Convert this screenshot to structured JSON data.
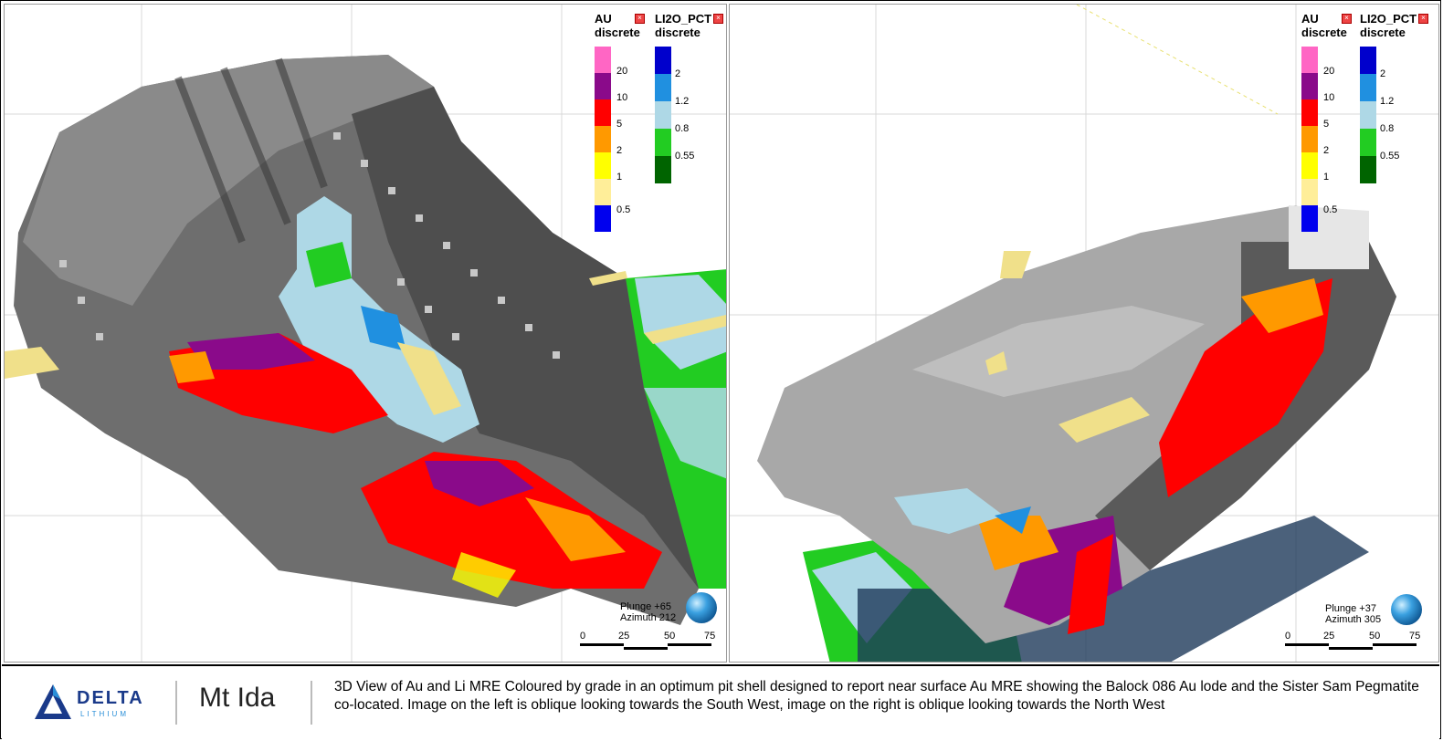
{
  "legends": {
    "au": {
      "title_line1": "AU",
      "title_line2": "discrete",
      "items": [
        {
          "label": "20",
          "color": "#ff66c4"
        },
        {
          "label": "10",
          "color": "#8a0a8a"
        },
        {
          "label": "5",
          "color": "#ff0000"
        },
        {
          "label": "2",
          "color": "#ff9900"
        },
        {
          "label": "1",
          "color": "#ffff00"
        },
        {
          "label": "0.5",
          "color": "#ffee99"
        },
        {
          "label": "",
          "color": "#0000ee"
        }
      ]
    },
    "li": {
      "title_line1": "LI2O_PCT",
      "title_line2": "discrete",
      "items": [
        {
          "label": "2",
          "color": "#0000cc"
        },
        {
          "label": "1.2",
          "color": "#2090e0"
        },
        {
          "label": "0.8",
          "color": "#aed8e6"
        },
        {
          "label": "0.55",
          "color": "#22cc22"
        },
        {
          "label": "",
          "color": "#006400"
        }
      ]
    }
  },
  "left_view": {
    "plunge": "Plunge +65",
    "azimuth": "Azimuth 212",
    "scale_ticks": [
      "0",
      "25",
      "50",
      "75"
    ]
  },
  "right_view": {
    "plunge": "Plunge +37",
    "azimuth": "Azimuth 305",
    "scale_ticks": [
      "0",
      "25",
      "50",
      "75"
    ]
  },
  "footer": {
    "logo_word": "DELTA",
    "logo_sub": "LITHIUM",
    "place": "Mt Ida",
    "caption": "3D View of Au and Li MRE Coloured by grade in an optimum pit shell designed to report near surface Au MRE showing the Balock 086 Au lode and the Sister Sam Pegmatite co-located. Image on the left is oblique looking towards the South West, image on the right is oblique looking towards the North West"
  },
  "colors": {
    "pit_shell": "#6e6e6e",
    "pit_shell_light": "#a8a8a8",
    "accent_logo": "#1a3a8a"
  }
}
